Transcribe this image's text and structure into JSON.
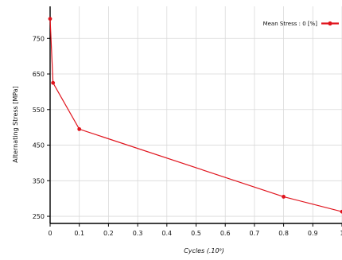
{
  "chart_data": {
    "type": "line",
    "xlabel": "Cycles (.10⁹)",
    "ylabel": "Alternating Stress  [MPa]",
    "x": [
      0,
      0.01,
      0.1,
      0.8,
      1.0
    ],
    "series": [
      {
        "name": "Mean Stress : 0 [%]",
        "values": [
          805,
          625,
          495,
          305,
          263
        ]
      }
    ],
    "xlim": [
      0,
      1
    ],
    "ylim": [
      230,
      840
    ],
    "x_ticks": [
      0,
      0.1,
      0.2,
      0.3,
      0.4,
      0.5,
      0.6,
      0.7,
      0.8,
      0.9,
      1
    ],
    "x_tick_labels": [
      "0",
      "0.1",
      "0.2",
      "0.3",
      "0.4",
      "0.5",
      "0.6",
      "0.7",
      "0.8",
      "0.9",
      "1"
    ],
    "y_ticks": [
      250,
      350,
      450,
      550,
      650,
      750
    ],
    "y_tick_labels": [
      "250",
      "350",
      "450",
      "550",
      "650",
      "750"
    ],
    "grid": true,
    "legend_position": "top-right",
    "line_color": "#e0141d",
    "grid_color": "#d9d9d9",
    "axis_color": "#000000"
  }
}
